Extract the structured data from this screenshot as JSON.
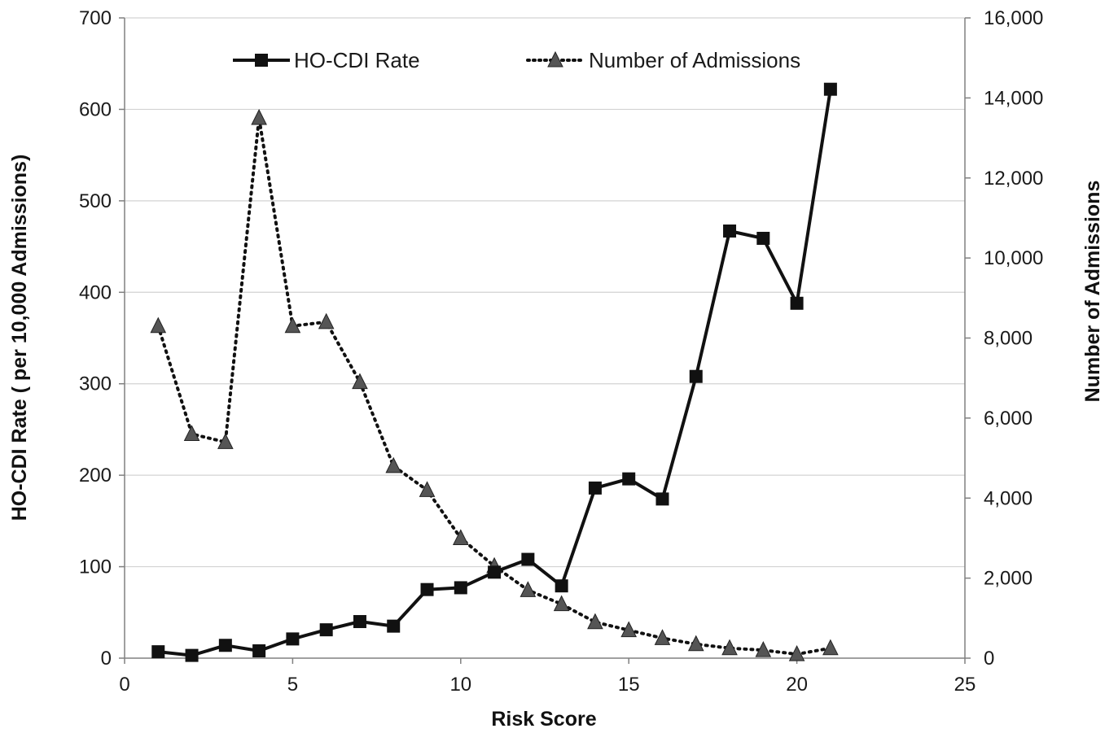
{
  "chart_data": {
    "type": "line",
    "title": "",
    "xlabel": "Risk Score",
    "ylabel_left": "HO-CDI Rate ( per 10,000 Admissions)",
    "ylabel_right": "Number of Admissions",
    "xlim": [
      0,
      25
    ],
    "ylim_left": [
      0,
      700
    ],
    "ylim_right": [
      0,
      16000
    ],
    "x_ticks": [
      "0",
      "5",
      "10",
      "15",
      "20",
      "25"
    ],
    "y_left_ticks": [
      "0",
      "100",
      "200",
      "300",
      "400",
      "500",
      "600",
      "700"
    ],
    "y_right_ticks": [
      "0",
      "2,000",
      "4,000",
      "6,000",
      "8,000",
      "10,000",
      "12,000",
      "14,000",
      "16,000"
    ],
    "grid": true,
    "legend_position": "top",
    "x": [
      1,
      2,
      3,
      4,
      5,
      6,
      7,
      8,
      9,
      10,
      11,
      12,
      13,
      14,
      15,
      16,
      17,
      18,
      19,
      20,
      21
    ],
    "series": [
      {
        "name": "HO-CDI Rate",
        "axis": "left",
        "line": "solid",
        "marker": "square",
        "color": "#111111",
        "values": [
          7,
          3,
          14,
          8,
          21,
          31,
          40,
          35,
          75,
          77,
          94,
          108,
          79,
          186,
          196,
          174,
          308,
          467,
          459,
          388,
          622
        ]
      },
      {
        "name": "Number of Admissions",
        "axis": "right",
        "line": "dotted",
        "marker": "triangle",
        "color": "#555555",
        "values": [
          8300,
          5600,
          5400,
          13500,
          8300,
          8400,
          6900,
          4800,
          4200,
          3000,
          2300,
          1700,
          1350,
          900,
          700,
          500,
          350,
          250,
          200,
          100,
          250
        ]
      }
    ]
  }
}
